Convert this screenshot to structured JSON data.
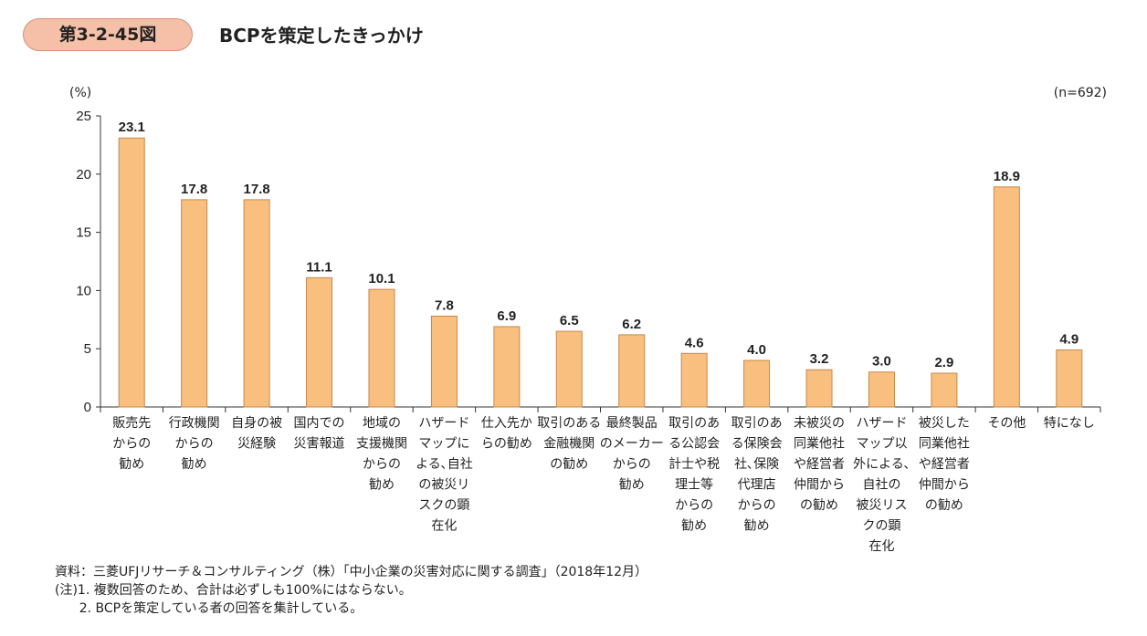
{
  "header": {
    "figure_number": "第3-2-45図",
    "title": "BCPを策定したきっかけ"
  },
  "chart_data": {
    "type": "bar",
    "title": "BCPを策定したきっかけ",
    "ylabel": "(%)",
    "sample_size": "(n=692)",
    "ylim": [
      0,
      25
    ],
    "yticks": [
      0,
      5,
      10,
      15,
      20,
      25
    ],
    "grid": false,
    "bar_color": "#f9bf7e",
    "bar_stroke": "#c8874a",
    "categories": [
      [
        "販売先",
        "からの",
        "勧め"
      ],
      [
        "行政機関",
        "からの",
        "勧め"
      ],
      [
        "自身の被",
        "災経験"
      ],
      [
        "国内での",
        "災害報道"
      ],
      [
        "地域の",
        "支援機関",
        "からの",
        "勧め"
      ],
      [
        "ハザード",
        "マップに",
        "よる､自社",
        "の被災リ",
        "スクの顕",
        "在化"
      ],
      [
        "仕入先か",
        "らの勧め"
      ],
      [
        "取引のある",
        "金融機関",
        "の勧め"
      ],
      [
        "最終製品",
        "のメーカー",
        "からの",
        "勧め"
      ],
      [
        "取引のあ",
        "る公認会",
        "計士や税",
        "理士等",
        "からの",
        "勧め"
      ],
      [
        "取引のあ",
        "る保険会",
        "社､保険",
        "代理店",
        "からの",
        "勧め"
      ],
      [
        "未被災の",
        "同業他社",
        "や経営者",
        "仲間から",
        "の勧め"
      ],
      [
        "ハザード",
        "マップ以",
        "外による､",
        "自社の",
        "被災リス",
        "クの顕",
        "在化"
      ],
      [
        "被災した",
        "同業他社",
        "や経営者",
        "仲間から",
        "の勧め"
      ],
      [
        "その他"
      ],
      [
        "特になし"
      ]
    ],
    "values": [
      23.1,
      17.8,
      17.8,
      11.1,
      10.1,
      7.8,
      6.9,
      6.5,
      6.2,
      4.6,
      4.0,
      3.2,
      3.0,
      2.9,
      18.9,
      4.9
    ],
    "value_labels": [
      "23.1",
      "17.8",
      "17.8",
      "11.1",
      "10.1",
      "7.8",
      "6.9",
      "6.5",
      "6.2",
      "4.6",
      "4.0",
      "3.2",
      "3.0",
      "2.9",
      "18.9",
      "4.9"
    ]
  },
  "notes": {
    "source": "資料：三菱UFJリサーチ＆コンサルティング（株）「中小企業の災害対応に関する調査」（2018年12月）",
    "note1": "(注)1. 複数回答のため、合計は必ずしも100%にはならない。",
    "note2": "      2. BCPを策定している者の回答を集計している。"
  }
}
